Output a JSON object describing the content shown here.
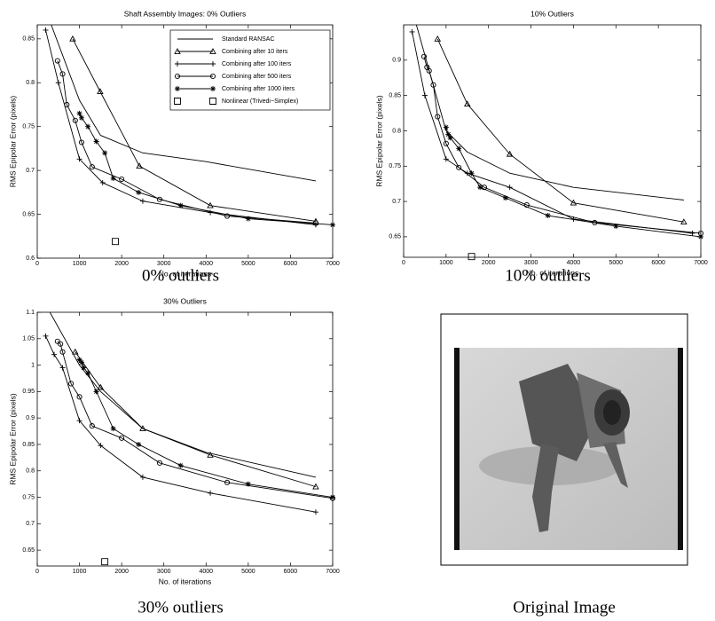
{
  "chart_data": [
    {
      "type": "line",
      "title": "Shaft Assembly Images: 0% Outliers",
      "caption": "0% outliers",
      "xlabel": "No. of iterations",
      "ylabel": "RMS Epipolar Error (pixels)",
      "xlim": [
        0,
        7000
      ],
      "xticks": [
        0,
        1000,
        2000,
        3000,
        4000,
        5000,
        6000,
        7000
      ],
      "ylim": [
        0.6,
        0.866
      ],
      "yticks": [
        0.6,
        0.65,
        0.7,
        0.75,
        0.8,
        0.85
      ],
      "legend": "upper right",
      "series": [
        {
          "name": "Standard RANSAC",
          "color": "#000000",
          "marker": "none",
          "x": [
            300,
            1000,
            1500,
            2500,
            4000,
            6600
          ],
          "values": [
            0.87,
            0.78,
            0.74,
            0.72,
            0.71,
            0.688
          ]
        },
        {
          "name": "Combining after 10 iters",
          "color": "#000000",
          "marker": "triangle",
          "x": [
            840,
            1490,
            2420,
            4100,
            6600
          ],
          "values": [
            0.85,
            0.79,
            0.705,
            0.66,
            0.642
          ]
        },
        {
          "name": "Combining after 100 iters",
          "color": "#000000",
          "marker": "plus",
          "x": [
            200,
            500,
            1000,
            1550,
            2500,
            4100,
            6600
          ],
          "values": [
            0.86,
            0.8,
            0.713,
            0.686,
            0.665,
            0.652,
            0.638
          ]
        },
        {
          "name": "Combining after 500 iters",
          "color": "#000000",
          "marker": "circle",
          "x": [
            480,
            600,
            700,
            900,
            1050,
            1300,
            2000,
            2900,
            4500,
            6600
          ],
          "values": [
            0.825,
            0.81,
            0.775,
            0.757,
            0.732,
            0.704,
            0.69,
            0.667,
            0.648,
            0.64
          ]
        },
        {
          "name": "Combining after 1000 iters",
          "color": "#000000",
          "marker": "star",
          "x": [
            1000,
            1050,
            1200,
            1400,
            1600,
            1800,
            2400,
            3400,
            5000,
            7000
          ],
          "values": [
            0.765,
            0.76,
            0.75,
            0.733,
            0.72,
            0.691,
            0.675,
            0.66,
            0.645,
            0.638
          ]
        },
        {
          "name": "Nonlinear (Trivedi−Simplex)",
          "color": "#000000",
          "marker": "square",
          "linestyle": "none",
          "x": [
            1850
          ],
          "values": [
            0.619
          ]
        }
      ]
    },
    {
      "type": "line",
      "title": "10% Outliers",
      "caption": "10% outliers",
      "xlabel": "No. of iterations",
      "ylabel": "RMS Epipolar Error (pixels)",
      "xlim": [
        0,
        7000
      ],
      "xticks": [
        0,
        1000,
        2000,
        3000,
        4000,
        5000,
        6000,
        7000
      ],
      "ylim": [
        0.621,
        0.95
      ],
      "yticks": [
        0.65,
        0.7,
        0.75,
        0.8,
        0.85,
        0.9
      ],
      "series": [
        {
          "color": "#000000",
          "marker": "none",
          "x": [
            300,
            1000,
            1500,
            2500,
            4000,
            6600
          ],
          "values": [
            0.95,
            0.8,
            0.77,
            0.74,
            0.72,
            0.702
          ]
        },
        {
          "color": "#000000",
          "marker": "triangle",
          "x": [
            800,
            1500,
            2500,
            4000,
            6600
          ],
          "values": [
            0.93,
            0.838,
            0.767,
            0.698,
            0.671
          ]
        },
        {
          "color": "#000000",
          "marker": "plus",
          "x": [
            200,
            500,
            1000,
            1500,
            2500,
            4000,
            6800
          ],
          "values": [
            0.94,
            0.85,
            0.76,
            0.74,
            0.72,
            0.675,
            0.655
          ]
        },
        {
          "color": "#000000",
          "marker": "circle",
          "x": [
            480,
            550,
            600,
            700,
            800,
            1000,
            1300,
            1900,
            2900,
            4500,
            7000
          ],
          "values": [
            0.905,
            0.89,
            0.885,
            0.865,
            0.82,
            0.782,
            0.748,
            0.72,
            0.695,
            0.67,
            0.655
          ]
        },
        {
          "color": "#000000",
          "marker": "star",
          "x": [
            1000,
            1050,
            1100,
            1300,
            1600,
            1800,
            2400,
            3400,
            5000,
            7000
          ],
          "values": [
            0.805,
            0.795,
            0.79,
            0.775,
            0.74,
            0.72,
            0.705,
            0.68,
            0.665,
            0.65
          ]
        },
        {
          "color": "#000000",
          "marker": "square",
          "linestyle": "none",
          "x": [
            1600
          ],
          "values": [
            0.622
          ]
        }
      ]
    },
    {
      "type": "line",
      "title": "30% Outliers",
      "caption": "30% outliers",
      "xlabel": "No. of iterations",
      "ylabel": "RMS Epipolar Error (pixels)",
      "xlim": [
        0,
        7000
      ],
      "xticks": [
        0,
        1000,
        2000,
        3000,
        4000,
        5000,
        6000,
        7000
      ],
      "ylim": [
        0.62,
        1.1
      ],
      "yticks": [
        0.65,
        0.7,
        0.75,
        0.8,
        0.85,
        0.9,
        0.95,
        1,
        1.05,
        1.1
      ],
      "series": [
        {
          "color": "#000000",
          "marker": "none",
          "x": [
            300,
            1000,
            1500,
            2500,
            4000,
            6600
          ],
          "values": [
            1.1,
            1.0,
            0.95,
            0.88,
            0.835,
            0.788
          ]
        },
        {
          "color": "#000000",
          "marker": "triangle",
          "x": [
            900,
            1500,
            2500,
            4100,
            6600
          ],
          "values": [
            1.025,
            0.958,
            0.88,
            0.83,
            0.77
          ]
        },
        {
          "color": "#000000",
          "marker": "plus",
          "x": [
            200,
            400,
            600,
            1000,
            1500,
            2500,
            4100,
            6600
          ],
          "values": [
            1.055,
            1.02,
            0.995,
            0.895,
            0.848,
            0.788,
            0.758,
            0.722
          ]
        },
        {
          "color": "#000000",
          "marker": "circle",
          "x": [
            480,
            550,
            600,
            800,
            1000,
            1300,
            2000,
            2900,
            4500,
            7000
          ],
          "values": [
            1.045,
            1.04,
            1.025,
            0.965,
            0.94,
            0.885,
            0.862,
            0.815,
            0.778,
            0.748
          ]
        },
        {
          "color": "#000000",
          "marker": "star",
          "x": [
            1000,
            1050,
            1100,
            1200,
            1400,
            1800,
            2400,
            3400,
            5000,
            7000
          ],
          "values": [
            1.01,
            1.005,
            0.995,
            0.985,
            0.95,
            0.88,
            0.85,
            0.81,
            0.775,
            0.75
          ]
        },
        {
          "color": "#000000",
          "marker": "square",
          "linestyle": "none",
          "x": [
            1600
          ],
          "values": [
            0.628
          ]
        }
      ]
    }
  ],
  "image": {
    "caption": "Original Image"
  }
}
